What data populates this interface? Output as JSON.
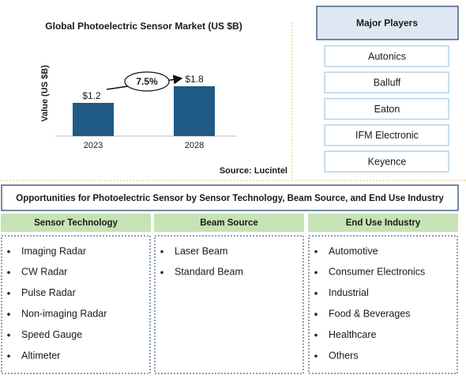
{
  "chart_data": {
    "type": "bar",
    "title": "Global Photoelectric Sensor Market (US $B)",
    "y_label": "Value (US $B)",
    "categories": [
      "2023",
      "2028"
    ],
    "values": [
      1.2,
      1.8
    ],
    "value_labels": [
      "$1.2",
      "$1.8"
    ],
    "color": "#1f5b85",
    "annotation": "7.5%",
    "source": "Source: Lucintel"
  },
  "major_players": {
    "title": "Major Players",
    "items": [
      "Autonics",
      "Balluff",
      "Eaton",
      "IFM Electronic",
      "Keyence"
    ]
  },
  "opportunities": {
    "title": "Opportunities for Photoelectric Sensor by Sensor Technology, Beam Source, and End Use Industry",
    "columns": [
      {
        "header": "Sensor Technology",
        "items": [
          "Imaging Radar",
          "CW Radar",
          "Pulse Radar",
          "Non-imaging Radar",
          "Speed Gauge",
          "Altimeter"
        ]
      },
      {
        "header": "Beam Source",
        "items": [
          "Laser Beam",
          "Standard Beam"
        ]
      },
      {
        "header": "End Use Industry",
        "items": [
          "Automotive",
          "Consumer Electronics",
          "Industrial",
          "Food & Beverages",
          "Healthcare",
          "Others"
        ]
      }
    ]
  }
}
